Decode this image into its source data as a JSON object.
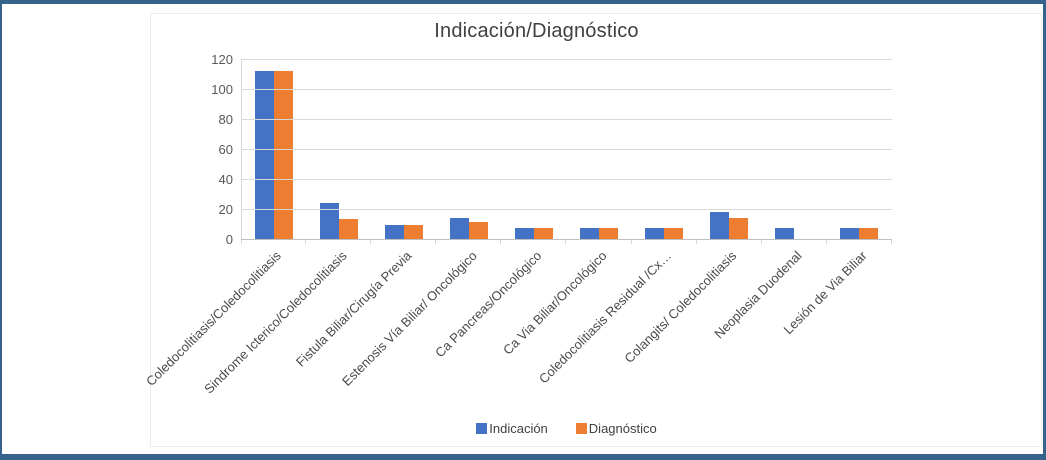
{
  "frame": {
    "border_color": "#35638c",
    "panel_border_color": "#ececec"
  },
  "chart_data": {
    "type": "bar",
    "title": "Indicación/Diagnóstico",
    "categories": [
      "Coledocolitiasis/Coledocolitiasis",
      "Sindrome Icterico/Coledocolitiasis",
      "Fistula Biliar/Cirugía Previa",
      "Estenosis Vía Biliar/ Oncológico",
      "Ca Pancreas/Oncológico",
      "Ca Via Biliar/Oncológico",
      "Coledocolitiasis Residual /Cx…",
      "Colangits/ Coledocolitiasis",
      "Neoplasia Duodenal",
      "Lesión de Via Biliar"
    ],
    "series": [
      {
        "name": "Indicación",
        "color": "#4472C4",
        "values": [
          113,
          25,
          10,
          15,
          8,
          8,
          8,
          19,
          8,
          8
        ]
      },
      {
        "name": "Diagnóstico",
        "color": "#ED7D31",
        "values": [
          113,
          14,
          10,
          12,
          8,
          8,
          8,
          15,
          0,
          8
        ]
      }
    ],
    "xlabel": "",
    "ylabel": "",
    "ylim": [
      0,
      120
    ],
    "yticks": [
      0,
      20,
      40,
      60,
      80,
      100,
      120
    ],
    "grid": true,
    "legend_position": "bottom",
    "gridline_color": "#d9d9d9",
    "baseline_color": "#bfbfbf",
    "axis_text_color": "#595959"
  }
}
